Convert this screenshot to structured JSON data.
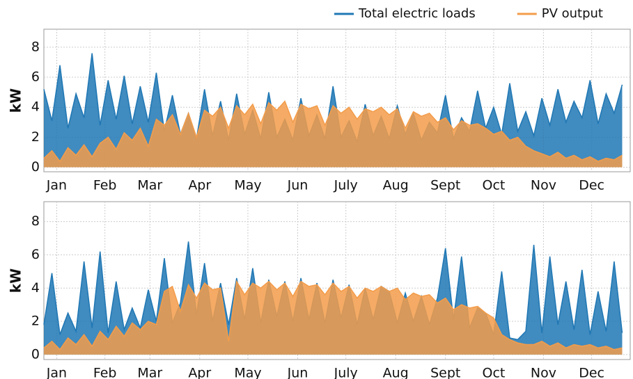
{
  "chart_data": [
    {
      "type": "line",
      "y_label": "kW",
      "grid": true,
      "legend": "top-right",
      "x": [
        0,
        5,
        10,
        15,
        20,
        25,
        30,
        35,
        40,
        45,
        50,
        55,
        60,
        65,
        70,
        75,
        80,
        85,
        90,
        95,
        100,
        105,
        110,
        115,
        120,
        125,
        130,
        135,
        140,
        145,
        150,
        155,
        160,
        165,
        170,
        175,
        180,
        185,
        190,
        195,
        200,
        205,
        210,
        215,
        220,
        225,
        230,
        235,
        240,
        245,
        250,
        255,
        260,
        265,
        270,
        275,
        280,
        285,
        290,
        295,
        300,
        305,
        310,
        315,
        320,
        325,
        330,
        335,
        340,
        345,
        350,
        355,
        360
      ],
      "xlim": [
        0,
        365
      ],
      "xticks": [
        {
          "value": 8,
          "label": "Jan"
        },
        {
          "value": 38,
          "label": "Feb"
        },
        {
          "value": 66,
          "label": "Mar"
        },
        {
          "value": 97,
          "label": "Apr"
        },
        {
          "value": 127,
          "label": "May"
        },
        {
          "value": 158,
          "label": "Jun"
        },
        {
          "value": 188,
          "label": "July"
        },
        {
          "value": 219,
          "label": "Aug"
        },
        {
          "value": 250,
          "label": "Sept"
        },
        {
          "value": 280,
          "label": "Oct"
        },
        {
          "value": 311,
          "label": "Nov"
        },
        {
          "value": 341,
          "label": "Dec"
        }
      ],
      "ylim": [
        -0.3,
        9.2
      ],
      "yticks": [
        0,
        2,
        4,
        6,
        8
      ],
      "series": [
        {
          "name": "Total electric loads",
          "color": "#1f77b4",
          "values": [
            5.2,
            3.1,
            6.8,
            2.6,
            4.9,
            3.3,
            7.6,
            2.8,
            5.8,
            3.2,
            6.1,
            2.9,
            5.4,
            3.0,
            6.3,
            2.4,
            4.8,
            2.2,
            3.6,
            1.9,
            5.2,
            2.1,
            4.4,
            1.8,
            4.9,
            2.2,
            3.8,
            1.9,
            5.0,
            2.0,
            3.2,
            1.8,
            4.6,
            2.1,
            3.5,
            1.9,
            5.4,
            2.0,
            3.1,
            1.7,
            4.2,
            2.1,
            3.4,
            1.9,
            4.1,
            2.2,
            3.6,
            1.8,
            3.0,
            2.3,
            4.8,
            1.9,
            3.3,
            2.4,
            5.1,
            2.6,
            4.0,
            2.2,
            5.6,
            2.4,
            3.7,
            2.1,
            4.6,
            2.8,
            5.2,
            3.0,
            4.4,
            3.3,
            5.8,
            2.9,
            4.9,
            3.6,
            5.5
          ]
        },
        {
          "name": "PV output",
          "color": "#f39c4a",
          "values": [
            0.6,
            1.1,
            0.4,
            1.3,
            0.8,
            1.5,
            0.7,
            1.6,
            2.0,
            1.2,
            2.3,
            1.8,
            2.6,
            1.4,
            3.2,
            2.8,
            3.5,
            2.2,
            3.6,
            2.0,
            3.8,
            3.4,
            4.0,
            2.6,
            4.1,
            3.5,
            4.2,
            2.9,
            4.3,
            3.8,
            4.4,
            3.0,
            4.2,
            3.9,
            4.1,
            2.8,
            4.1,
            3.6,
            4.0,
            3.2,
            3.9,
            3.7,
            4.0,
            3.5,
            3.9,
            2.6,
            3.7,
            3.4,
            3.6,
            3.0,
            3.3,
            2.5,
            3.1,
            2.8,
            2.9,
            2.6,
            2.2,
            2.4,
            1.8,
            2.0,
            1.4,
            1.1,
            0.9,
            0.7,
            1.0,
            0.6,
            0.8,
            0.5,
            0.7,
            0.4,
            0.6,
            0.5,
            0.8
          ]
        }
      ]
    },
    {
      "type": "line",
      "y_label": "kW",
      "grid": true,
      "x": [
        0,
        5,
        10,
        15,
        20,
        25,
        30,
        35,
        40,
        45,
        50,
        55,
        60,
        65,
        70,
        75,
        80,
        85,
        90,
        95,
        100,
        105,
        110,
        115,
        120,
        125,
        130,
        135,
        140,
        145,
        150,
        155,
        160,
        165,
        170,
        175,
        180,
        185,
        190,
        195,
        200,
        205,
        210,
        215,
        220,
        225,
        230,
        235,
        240,
        245,
        250,
        255,
        260,
        265,
        270,
        275,
        280,
        285,
        290,
        295,
        300,
        305,
        310,
        315,
        320,
        325,
        330,
        335,
        340,
        345,
        350,
        355,
        360
      ],
      "xlim": [
        0,
        365
      ],
      "xticks": [
        {
          "value": 8,
          "label": "Jan"
        },
        {
          "value": 38,
          "label": "Feb"
        },
        {
          "value": 66,
          "label": "Mar"
        },
        {
          "value": 97,
          "label": "Apr"
        },
        {
          "value": 127,
          "label": "May"
        },
        {
          "value": 158,
          "label": "Jun"
        },
        {
          "value": 188,
          "label": "July"
        },
        {
          "value": 219,
          "label": "Aug"
        },
        {
          "value": 250,
          "label": "Sept"
        },
        {
          "value": 280,
          "label": "Oct"
        },
        {
          "value": 311,
          "label": "Nov"
        },
        {
          "value": 341,
          "label": "Dec"
        }
      ],
      "ylim": [
        -0.3,
        9.2
      ],
      "yticks": [
        0,
        2,
        4,
        6,
        8
      ],
      "series": [
        {
          "color": "#1f77b4",
          "values": [
            1.8,
            4.9,
            1.2,
            2.5,
            1.4,
            5.6,
            1.6,
            6.2,
            1.3,
            4.4,
            1.5,
            2.8,
            1.6,
            3.9,
            2.0,
            5.8,
            1.9,
            3.1,
            6.8,
            2.4,
            5.5,
            2.0,
            4.3,
            1.8,
            4.6,
            2.1,
            5.2,
            1.9,
            4.5,
            2.3,
            4.4,
            2.0,
            4.6,
            2.1,
            4.3,
            1.9,
            4.5,
            2.2,
            4.2,
            1.8,
            4.0,
            2.1,
            4.1,
            3.8,
            1.9,
            3.7,
            2.0,
            3.5,
            1.8,
            3.4,
            6.4,
            2.1,
            5.9,
            1.6,
            2.8,
            2.5,
            1.2,
            5.0,
            1.0,
            0.9,
            1.4,
            6.6,
            1.3,
            5.9,
            1.8,
            4.4,
            1.5,
            5.1,
            1.2,
            3.8,
            1.4,
            5.6,
            1.3
          ]
        },
        {
          "color": "#f39c4a",
          "values": [
            0.4,
            0.8,
            0.3,
            1.0,
            0.6,
            1.2,
            0.5,
            1.4,
            0.9,
            1.7,
            1.1,
            1.9,
            1.5,
            2.0,
            1.8,
            3.8,
            4.1,
            2.6,
            4.2,
            3.4,
            4.3,
            3.9,
            4.0,
            0.8,
            4.4,
            3.6,
            4.3,
            4.0,
            4.4,
            3.9,
            4.3,
            3.5,
            4.4,
            4.1,
            4.2,
            3.6,
            4.3,
            3.8,
            4.1,
            3.4,
            4.0,
            3.8,
            4.1,
            3.8,
            4.0,
            3.3,
            3.7,
            3.5,
            3.6,
            3.1,
            3.4,
            2.7,
            3.0,
            2.8,
            2.9,
            2.5,
            2.2,
            1.2,
            0.9,
            0.7,
            0.6,
            0.6,
            0.8,
            0.5,
            0.7,
            0.4,
            0.6,
            0.5,
            0.6,
            0.4,
            0.5,
            0.3,
            0.4
          ]
        }
      ]
    }
  ]
}
